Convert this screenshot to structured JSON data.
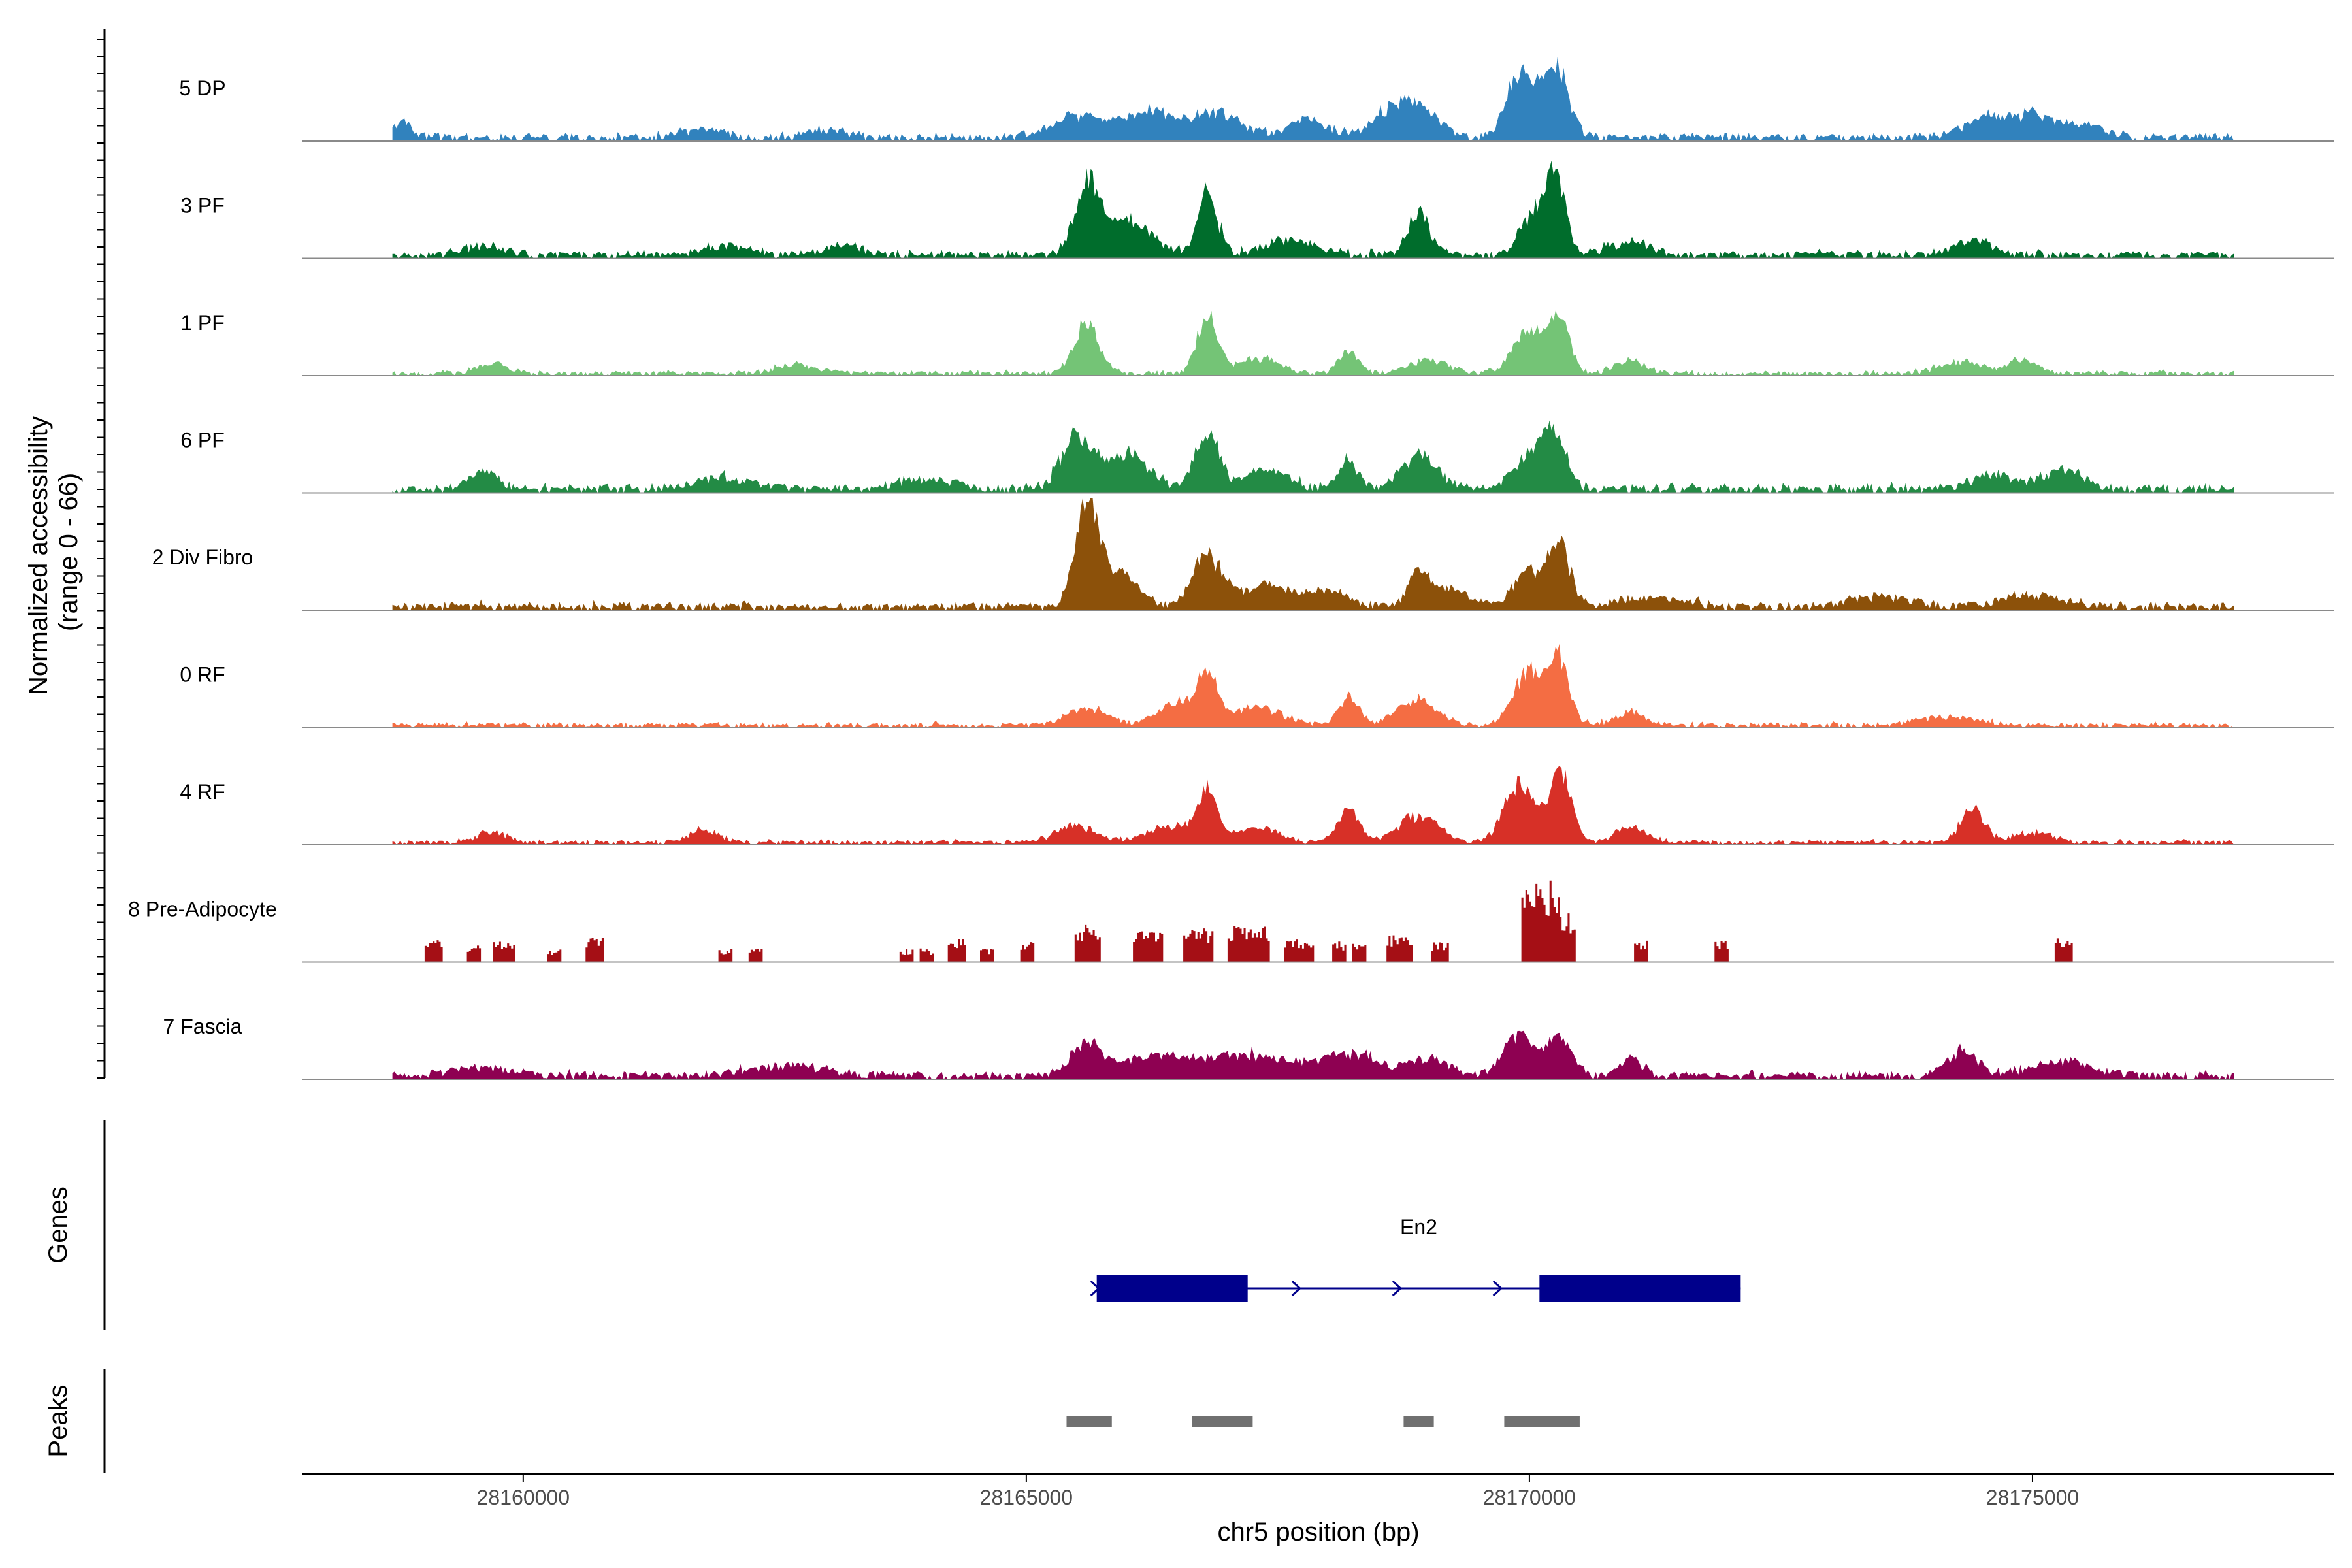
{
  "chart_data": {
    "type": "area",
    "title": "",
    "ylabel": "Normalized accessibility\n(range 0 - 66)",
    "xlabel": "chr5 position (bp)",
    "xlim": [
      28157800,
      28178000
    ],
    "ylim": [
      0,
      66
    ],
    "x_ticks": [
      28160000,
      28165000,
      28170000,
      28175000
    ],
    "x_tick_labels": [
      "28160000",
      "28165000",
      "28170000",
      "28175000"
    ],
    "genes_panel_label": "Genes",
    "peaks_panel_label": "Peaks",
    "tracks": [
      {
        "name": "5 DP",
        "color": "#3182BD",
        "start": 28158700,
        "end": 28177000,
        "baseline": 3,
        "noise": 3,
        "blocky": false,
        "seed": 11,
        "peaks": [
          [
            28158800,
            10,
            100
          ],
          [
            28165500,
            12,
            250
          ],
          [
            28166200,
            15,
            250
          ],
          [
            28166900,
            14,
            250
          ],
          [
            28167800,
            10,
            200
          ],
          [
            28168600,
            12,
            200
          ],
          [
            28168900,
            16,
            200
          ],
          [
            28169900,
            38,
            130
          ],
          [
            28170250,
            45,
            130
          ],
          [
            28174500,
            11,
            200
          ],
          [
            28175000,
            14,
            200
          ],
          [
            28175500,
            8,
            200
          ],
          [
            28163000,
            5,
            180
          ],
          [
            28161800,
            5,
            200
          ]
        ]
      },
      {
        "name": "3 PF",
        "color": "#006D2C",
        "start": 28158700,
        "end": 28177000,
        "baseline": 3,
        "noise": 3,
        "blocky": false,
        "seed": 23,
        "peaks": [
          [
            28165600,
            40,
            120
          ],
          [
            28166000,
            20,
            250
          ],
          [
            28166800,
            36,
            100
          ],
          [
            28167600,
            9,
            250
          ],
          [
            28168900,
            24,
            110
          ],
          [
            28170000,
            20,
            120
          ],
          [
            28170250,
            45,
            110
          ],
          [
            28171000,
            8,
            200
          ],
          [
            28174400,
            8,
            200
          ],
          [
            28159600,
            5,
            200
          ],
          [
            28162000,
            6,
            200
          ],
          [
            28163200,
            5,
            200
          ]
        ]
      },
      {
        "name": "1 PF",
        "color": "#74C476",
        "start": 28158700,
        "end": 28177000,
        "baseline": 2,
        "noise": 2,
        "blocky": false,
        "seed": 37,
        "peaks": [
          [
            28165600,
            30,
            120
          ],
          [
            28166800,
            34,
            100
          ],
          [
            28167300,
            9,
            200
          ],
          [
            28168200,
            12,
            100
          ],
          [
            28169000,
            8,
            200
          ],
          [
            28170000,
            25,
            160
          ],
          [
            28170300,
            30,
            100
          ],
          [
            28171000,
            8,
            150
          ],
          [
            28174300,
            7,
            200
          ],
          [
            28174900,
            8,
            150
          ],
          [
            28159700,
            6,
            150
          ],
          [
            28162700,
            5,
            200
          ]
        ]
      },
      {
        "name": "6 PF",
        "color": "#238B45",
        "start": 28158700,
        "end": 28177000,
        "baseline": 3,
        "noise": 4,
        "blocky": false,
        "seed": 53,
        "peaks": [
          [
            28165500,
            32,
            150
          ],
          [
            28166000,
            22,
            200
          ],
          [
            28166800,
            33,
            120
          ],
          [
            28167400,
            11,
            200
          ],
          [
            28168200,
            16,
            100
          ],
          [
            28168900,
            20,
            180
          ],
          [
            28170000,
            18,
            150
          ],
          [
            28170250,
            30,
            120
          ],
          [
            28159600,
            10,
            150
          ],
          [
            28162000,
            7,
            300
          ],
          [
            28164000,
            6,
            300
          ],
          [
            28174600,
            9,
            200
          ],
          [
            28175300,
            11,
            200
          ]
        ]
      },
      {
        "name": "2 Div Fibro",
        "color": "#8C510A",
        "start": 28158700,
        "end": 28177000,
        "baseline": 3,
        "noise": 3,
        "blocky": false,
        "seed": 71,
        "peaks": [
          [
            28165600,
            60,
            110
          ],
          [
            28165900,
            20,
            200
          ],
          [
            28166800,
            30,
            150
          ],
          [
            28167400,
            12,
            250
          ],
          [
            28168000,
            9,
            200
          ],
          [
            28168900,
            18,
            100
          ],
          [
            28169200,
            10,
            200
          ],
          [
            28170000,
            22,
            150
          ],
          [
            28170300,
            38,
            100
          ],
          [
            28171200,
            6,
            300
          ],
          [
            28173500,
            6,
            300
          ],
          [
            28175000,
            7,
            300
          ]
        ]
      },
      {
        "name": "0 RF",
        "color": "#F46D43",
        "start": 28158700,
        "end": 28177000,
        "baseline": 2,
        "noise": 2,
        "blocky": false,
        "seed": 89,
        "peaks": [
          [
            28165600,
            10,
            200
          ],
          [
            28166500,
            12,
            200
          ],
          [
            28166800,
            28,
            100
          ],
          [
            28167300,
            10,
            250
          ],
          [
            28168200,
            17,
            100
          ],
          [
            28168900,
            15,
            200
          ],
          [
            28170000,
            32,
            150
          ],
          [
            28170300,
            38,
            100
          ],
          [
            28171000,
            8,
            150
          ],
          [
            28174200,
            5,
            300
          ]
        ]
      },
      {
        "name": "4 RF",
        "color": "#D73027",
        "start": 28158700,
        "end": 28177000,
        "baseline": 2,
        "noise": 2,
        "blocky": false,
        "seed": 101,
        "peaks": [
          [
            28165500,
            10,
            200
          ],
          [
            28166400,
            10,
            200
          ],
          [
            28166800,
            30,
            100
          ],
          [
            28167300,
            9,
            200
          ],
          [
            28168200,
            20,
            100
          ],
          [
            28168900,
            16,
            200
          ],
          [
            28169900,
            35,
            150
          ],
          [
            28170300,
            42,
            110
          ],
          [
            28171000,
            9,
            150
          ],
          [
            28174400,
            19,
            120
          ],
          [
            28175000,
            6,
            200
          ],
          [
            28159700,
            6,
            150
          ],
          [
            28161800,
            7,
            150
          ]
        ]
      },
      {
        "name": "8 Pre-Adipocyte",
        "color": "#A50F15",
        "start": 28158700,
        "end": 28177000,
        "baseline": 0,
        "noise": 0,
        "blocky": true,
        "seed": 131,
        "peaks": [
          [
            28159100,
            14,
            80
          ],
          [
            28159500,
            10,
            60
          ],
          [
            28159800,
            13,
            100
          ],
          [
            28160300,
            8,
            60
          ],
          [
            28160700,
            15,
            80
          ],
          [
            28162000,
            8,
            60
          ],
          [
            28162300,
            8,
            60
          ],
          [
            28163800,
            8,
            60
          ],
          [
            28164000,
            8,
            60
          ],
          [
            28164300,
            14,
            80
          ],
          [
            28164600,
            8,
            60
          ],
          [
            28165000,
            12,
            70
          ],
          [
            28165600,
            22,
            120
          ],
          [
            28166200,
            20,
            150
          ],
          [
            28166700,
            20,
            150
          ],
          [
            28167200,
            22,
            200
          ],
          [
            28167700,
            14,
            150
          ],
          [
            28168100,
            12,
            60
          ],
          [
            28168300,
            11,
            60
          ],
          [
            28168700,
            16,
            120
          ],
          [
            28169100,
            12,
            80
          ],
          [
            28170100,
            48,
            180
          ],
          [
            28170300,
            30,
            150
          ],
          [
            28171100,
            13,
            70
          ],
          [
            28171900,
            13,
            70
          ],
          [
            28175300,
            14,
            80
          ]
        ]
      },
      {
        "name": "7 Fascia",
        "color": "#8E0152",
        "start": 28158700,
        "end": 28177000,
        "baseline": 3,
        "noise": 3,
        "blocky": false,
        "seed": 149,
        "peaks": [
          [
            28165600,
            20,
            150
          ],
          [
            28166300,
            12,
            300
          ],
          [
            28167200,
            12,
            400
          ],
          [
            28168200,
            12,
            300
          ],
          [
            28169000,
            10,
            200
          ],
          [
            28169900,
            25,
            150
          ],
          [
            28170300,
            22,
            120
          ],
          [
            28171000,
            10,
            120
          ],
          [
            28174300,
            14,
            150
          ],
          [
            28175300,
            9,
            300
          ],
          [
            28159600,
            5,
            300
          ],
          [
            28162600,
            6,
            400
          ]
        ]
      }
    ],
    "gene": {
      "name": "En2",
      "color": "#00008B",
      "start": 28165700,
      "end": 28172100,
      "exons": [
        [
          28165700,
          28167200
        ],
        [
          28170100,
          28172100
        ]
      ],
      "strand_markers": [
        28165700,
        28167700,
        28168700,
        28169700
      ]
    },
    "peak_regions": {
      "color": "#707070",
      "regions": [
        [
          28165400,
          28165850
        ],
        [
          28166650,
          28167250
        ],
        [
          28168750,
          28169050
        ],
        [
          28169750,
          28170500
        ]
      ]
    }
  }
}
